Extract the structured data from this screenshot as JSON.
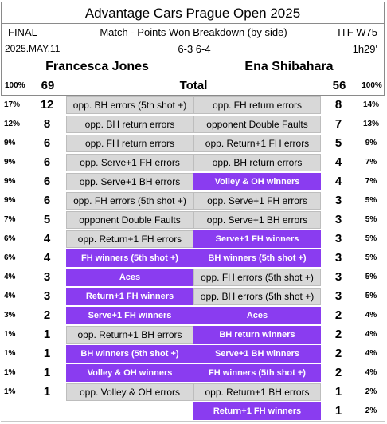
{
  "header": {
    "title": "Advantage Cars Prague Open 2025",
    "round": "FINAL",
    "subtitle": "Match - Points Won Breakdown (by side)",
    "tour": "ITF W75",
    "date": "2025.MAY.11",
    "score": "6-3  6-4",
    "duration": "1h29'"
  },
  "players": {
    "left": "Francesca Jones",
    "right": "Ena Shibahara"
  },
  "total": {
    "label": "Total",
    "left_pct": "100%",
    "left_count": "69",
    "right_count": "56",
    "right_pct": "100%"
  },
  "colors": {
    "grey_cell": "#d8d8d8",
    "winner_cell": "#8a3cf0"
  },
  "rows": [
    {
      "lp": "17%",
      "lc": "12",
      "ll": "opp. BH errors (5th shot +)",
      "lt": "grey",
      "rl": "opp. FH return errors",
      "rt": "grey",
      "rc": "8",
      "rp": "14%"
    },
    {
      "lp": "12%",
      "lc": "8",
      "ll": "opp. BH return errors",
      "lt": "grey",
      "rl": "opponent Double Faults",
      "rt": "grey",
      "rc": "7",
      "rp": "13%"
    },
    {
      "lp": "9%",
      "lc": "6",
      "ll": "opp. FH return errors",
      "lt": "grey",
      "rl": "opp. Return+1 FH errors",
      "rt": "grey",
      "rc": "5",
      "rp": "9%"
    },
    {
      "lp": "9%",
      "lc": "6",
      "ll": "opp. Serve+1 FH errors",
      "lt": "grey",
      "rl": "opp. BH return errors",
      "rt": "grey",
      "rc": "4",
      "rp": "7%"
    },
    {
      "lp": "9%",
      "lc": "6",
      "ll": "opp. Serve+1 BH errors",
      "lt": "grey",
      "rl": "Volley & OH winners",
      "rt": "purple",
      "rc": "4",
      "rp": "7%"
    },
    {
      "lp": "9%",
      "lc": "6",
      "ll": "opp. FH errors (5th shot +)",
      "lt": "grey",
      "rl": "opp. Serve+1 FH errors",
      "rt": "grey",
      "rc": "3",
      "rp": "5%"
    },
    {
      "lp": "7%",
      "lc": "5",
      "ll": "opponent Double Faults",
      "lt": "grey",
      "rl": "opp. Serve+1 BH errors",
      "rt": "grey",
      "rc": "3",
      "rp": "5%"
    },
    {
      "lp": "6%",
      "lc": "4",
      "ll": "opp. Return+1 FH errors",
      "lt": "grey",
      "rl": "Serve+1 FH winners",
      "rt": "purple",
      "rc": "3",
      "rp": "5%"
    },
    {
      "lp": "6%",
      "lc": "4",
      "ll": "FH winners (5th shot +)",
      "lt": "purple",
      "rl": "BH winners (5th shot +)",
      "rt": "purple",
      "rc": "3",
      "rp": "5%"
    },
    {
      "lp": "4%",
      "lc": "3",
      "ll": "Aces",
      "lt": "purple",
      "rl": "opp. FH errors (5th shot +)",
      "rt": "grey",
      "rc": "3",
      "rp": "5%"
    },
    {
      "lp": "4%",
      "lc": "3",
      "ll": "Return+1 FH winners",
      "lt": "purple",
      "rl": "opp. BH errors (5th shot +)",
      "rt": "grey",
      "rc": "3",
      "rp": "5%"
    },
    {
      "lp": "3%",
      "lc": "2",
      "ll": "Serve+1 FH winners",
      "lt": "purple",
      "rl": "Aces",
      "rt": "purple",
      "rc": "2",
      "rp": "4%"
    },
    {
      "lp": "1%",
      "lc": "1",
      "ll": "opp. Return+1 BH errors",
      "lt": "grey",
      "rl": "BH return winners",
      "rt": "purple",
      "rc": "2",
      "rp": "4%"
    },
    {
      "lp": "1%",
      "lc": "1",
      "ll": "BH winners (5th shot +)",
      "lt": "purple",
      "rl": "Serve+1 BH winners",
      "rt": "purple",
      "rc": "2",
      "rp": "4%"
    },
    {
      "lp": "1%",
      "lc": "1",
      "ll": "Volley & OH winners",
      "lt": "purple",
      "rl": "FH winners (5th shot +)",
      "rt": "purple",
      "rc": "2",
      "rp": "4%"
    },
    {
      "lp": "1%",
      "lc": "1",
      "ll": "opp. Volley & OH errors",
      "lt": "grey",
      "rl": "opp. Return+1 BH errors",
      "rt": "grey",
      "rc": "1",
      "rp": "2%"
    },
    {
      "lp": "",
      "lc": "",
      "ll": "",
      "lt": "empty",
      "rl": "Return+1 FH winners",
      "rt": "purple",
      "rc": "1",
      "rp": "2%"
    }
  ]
}
